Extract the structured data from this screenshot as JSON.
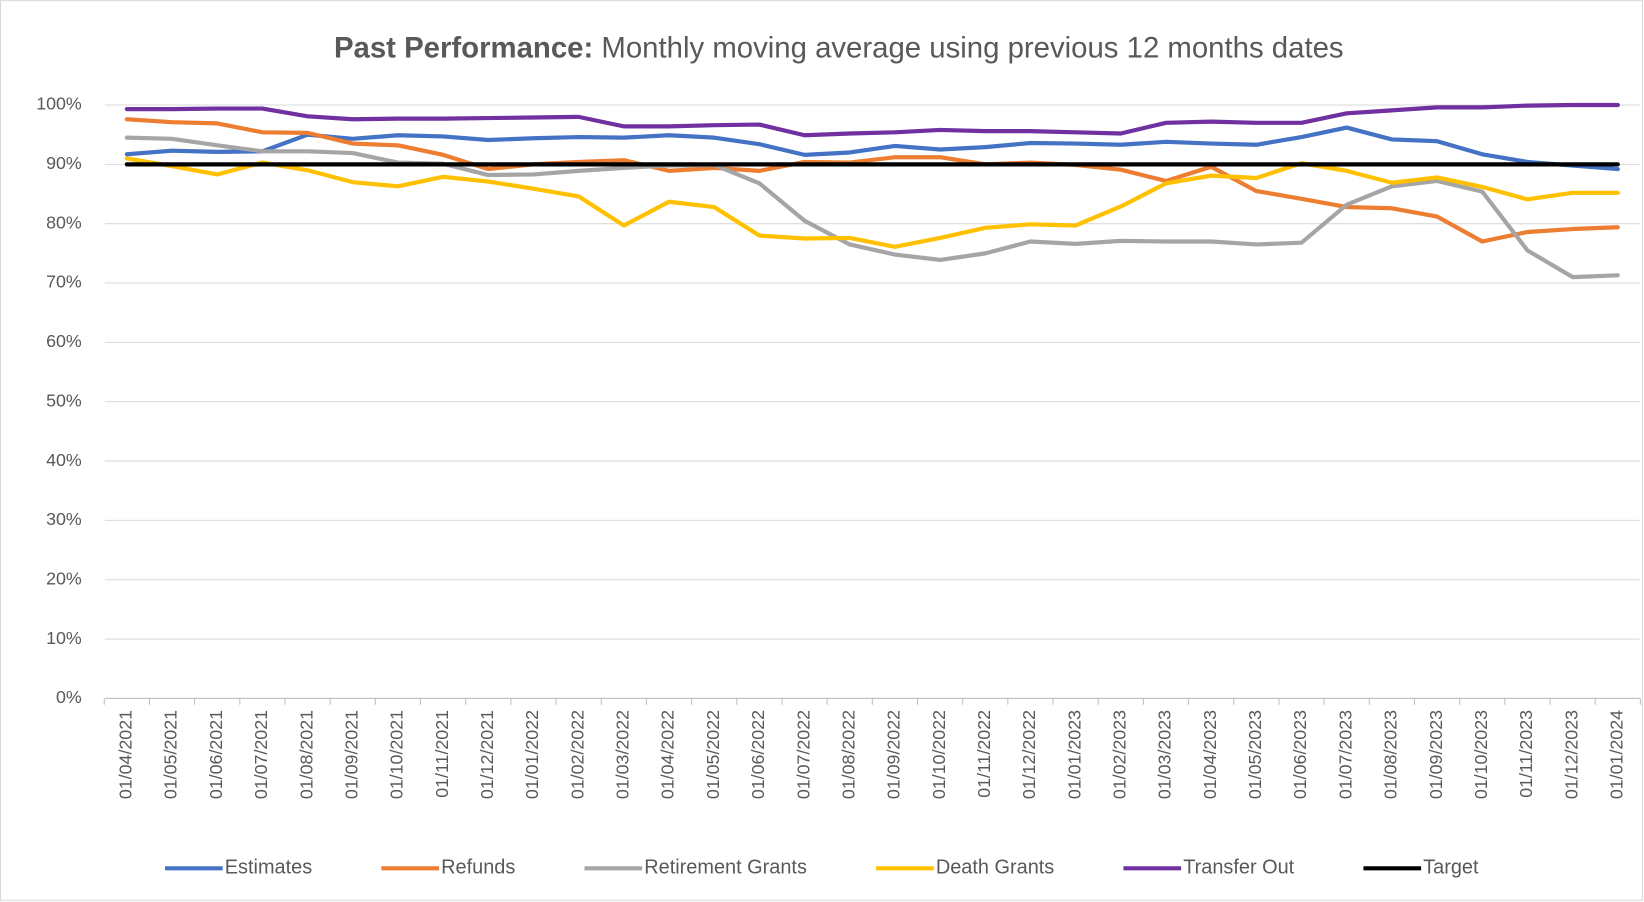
{
  "chart_data": {
    "type": "line",
    "title": [
      "Past Performance:",
      "Monthly moving average using previous 12 months dates"
    ],
    "categories": [
      "01/04/2021",
      "01/05/2021",
      "01/06/2021",
      "01/07/2021",
      "01/08/2021",
      "01/09/2021",
      "01/10/2021",
      "01/11/2021",
      "01/12/2021",
      "01/01/2022",
      "01/02/2022",
      "01/03/2022",
      "01/04/2022",
      "01/05/2022",
      "01/06/2022",
      "01/07/2022",
      "01/08/2022",
      "01/09/2022",
      "01/10/2022",
      "01/11/2022",
      "01/12/2022",
      "01/01/2023",
      "01/02/2023",
      "01/03/2023",
      "01/04/2023",
      "01/05/2023",
      "01/06/2023",
      "01/07/2023",
      "01/08/2023",
      "01/09/2023",
      "01/10/2023",
      "01/11/2023",
      "01/12/2023",
      "01/01/2024"
    ],
    "series": [
      {
        "name": "Estimates",
        "color": "#4472c4",
        "values": [
          91.7,
          92.3,
          92.1,
          92.2,
          95.0,
          94.3,
          94.9,
          94.7,
          94.1,
          94.4,
          94.6,
          94.5,
          94.9,
          94.5,
          93.4,
          91.6,
          92.0,
          93.1,
          92.5,
          92.9,
          93.6,
          93.5,
          93.3,
          93.8,
          93.5,
          93.3,
          94.6,
          96.2,
          94.2,
          93.9,
          91.7,
          90.4,
          89.8,
          89.2
        ]
      },
      {
        "name": "Refunds",
        "color": "#ed7d31",
        "values": [
          97.6,
          97.1,
          96.9,
          95.4,
          95.3,
          93.5,
          93.2,
          91.6,
          89.2,
          90.0,
          90.4,
          90.7,
          88.9,
          89.4,
          88.9,
          90.4,
          90.3,
          91.2,
          91.2,
          90.0,
          90.3,
          89.9,
          89.1,
          87.2,
          89.6,
          85.5,
          84.2,
          82.8,
          82.6,
          81.2,
          77.0,
          78.6,
          79.1,
          79.4
        ]
      },
      {
        "name": "Retirement Grants",
        "color": "#a5a5a5",
        "values": [
          94.5,
          94.3,
          93.2,
          92.2,
          92.2,
          91.9,
          90.3,
          90.1,
          88.2,
          88.3,
          88.9,
          89.4,
          89.8,
          89.9,
          86.8,
          80.5,
          76.5,
          74.8,
          73.9,
          75.0,
          77.0,
          76.6,
          77.1,
          77.0,
          77.0,
          76.5,
          76.8,
          83.2,
          86.3,
          87.2,
          85.4,
          75.5,
          71.0,
          71.3
        ]
      },
      {
        "name": "Death Grants",
        "color": "#ffc000",
        "values": [
          91.0,
          89.7,
          88.3,
          90.3,
          89.0,
          87.0,
          86.3,
          87.9,
          87.1,
          85.9,
          84.6,
          79.7,
          83.7,
          82.8,
          78.0,
          77.5,
          77.6,
          76.1,
          77.6,
          79.3,
          79.9,
          79.7,
          82.9,
          86.8,
          88.1,
          87.7,
          90.2,
          88.9,
          86.9,
          87.8,
          86.2,
          84.1,
          85.2,
          85.2
        ]
      },
      {
        "name": "Transfer Out",
        "color": "#7030a0",
        "values": [
          99.3,
          99.3,
          99.4,
          99.4,
          98.1,
          97.6,
          97.7,
          97.7,
          97.8,
          97.9,
          98.0,
          96.4,
          96.4,
          96.6,
          96.7,
          94.9,
          95.2,
          95.4,
          95.8,
          95.6,
          95.6,
          95.4,
          95.2,
          97.0,
          97.2,
          97.0,
          97.0,
          98.6,
          99.1,
          99.6,
          99.6,
          99.9,
          100,
          100
        ]
      },
      {
        "name": "Target",
        "color": "#000000",
        "values": [
          90,
          90,
          90,
          90,
          90,
          90,
          90,
          90,
          90,
          90,
          90,
          90,
          90,
          90,
          90,
          90,
          90,
          90,
          90,
          90,
          90,
          90,
          90,
          90,
          90,
          90,
          90,
          90,
          90,
          90,
          90,
          90,
          90,
          90
        ]
      }
    ],
    "ylim": [
      0,
      100
    ],
    "yticks": [
      {
        "value": 0,
        "label": "0%"
      },
      {
        "value": 10,
        "label": "10%"
      },
      {
        "value": 20,
        "label": "20%"
      },
      {
        "value": 30,
        "label": "30%"
      },
      {
        "value": 40,
        "label": "40%"
      },
      {
        "value": 50,
        "label": "50%"
      },
      {
        "value": 60,
        "label": "60%"
      },
      {
        "value": 70,
        "label": "70%"
      },
      {
        "value": 80,
        "label": "80%"
      },
      {
        "value": 90,
        "label": "90%"
      },
      {
        "value": 100,
        "label": "100%"
      }
    ],
    "grid": true,
    "legend": "bottom"
  }
}
